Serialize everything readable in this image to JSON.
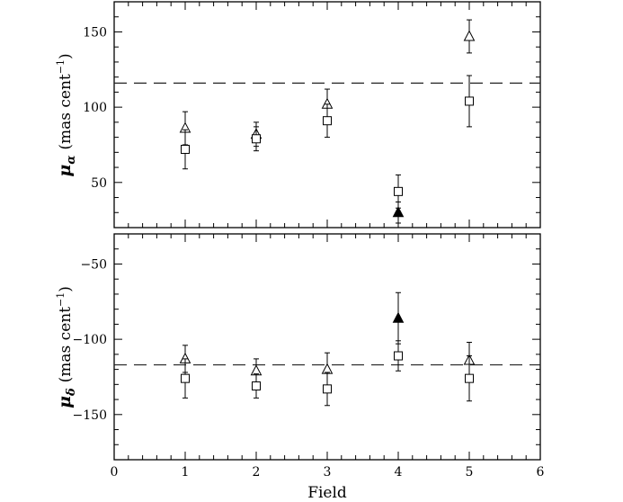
{
  "chart_data": [
    {
      "type": "scatter",
      "panel": "top",
      "ylabel": "μ_α (mas cent⁻¹)",
      "ylabel_symbol": "μ",
      "ylabel_subscript": "α",
      "ylabel_units": "(mas cent",
      "ylabel_exp": "−1",
      "ylabel_close": ")",
      "xlim": [
        0,
        6
      ],
      "ylim": [
        20,
        170
      ],
      "yticks": [
        50,
        100,
        150
      ],
      "ytick_labels": [
        "50",
        "100",
        "150"
      ],
      "reference_line": 116,
      "series": [
        {
          "marker": "open-triangle",
          "points": [
            {
              "x": 1,
              "y": 86,
              "err": 11
            },
            {
              "x": 2,
              "y": 82,
              "err": 8
            },
            {
              "x": 3,
              "y": 102,
              "err": 10
            },
            {
              "x": 5,
              "y": 147,
              "err": 11
            }
          ]
        },
        {
          "marker": "open-square",
          "points": [
            {
              "x": 1,
              "y": 72,
              "err": 13
            },
            {
              "x": 2,
              "y": 79,
              "err": 8
            },
            {
              "x": 3,
              "y": 91,
              "err": 11
            },
            {
              "x": 4,
              "y": 44,
              "err": 11
            },
            {
              "x": 5,
              "y": 104,
              "err": 17
            }
          ]
        },
        {
          "marker": "filled-triangle",
          "points": [
            {
              "x": 4,
              "y": 30,
              "err": 7
            }
          ]
        }
      ]
    },
    {
      "type": "scatter",
      "panel": "bottom",
      "xlabel": "Field",
      "ylabel": "μ_δ (mas cent⁻¹)",
      "ylabel_symbol": "μ",
      "ylabel_subscript": "δ",
      "ylabel_units": "(mas cent",
      "ylabel_exp": "−1",
      "ylabel_close": ")",
      "xlim": [
        0,
        6
      ],
      "ylim": [
        -180,
        -30
      ],
      "xticks": [
        0,
        1,
        2,
        3,
        4,
        5,
        6
      ],
      "xtick_labels": [
        "0",
        "1",
        "2",
        "3",
        "4",
        "5",
        "6"
      ],
      "yticks": [
        -150,
        -100,
        -50
      ],
      "ytick_labels": [
        "−150",
        "−100",
        "−50"
      ],
      "reference_line": -117,
      "series": [
        {
          "marker": "open-triangle",
          "points": [
            {
              "x": 1,
              "y": -113,
              "err": 9
            },
            {
              "x": 2,
              "y": -121,
              "err": 8
            },
            {
              "x": 3,
              "y": -120,
              "err": 11
            },
            {
              "x": 5,
              "y": -114,
              "err": 12
            }
          ]
        },
        {
          "marker": "open-square",
          "points": [
            {
              "x": 1,
              "y": -126,
              "err": 13
            },
            {
              "x": 2,
              "y": -131,
              "err": 8
            },
            {
              "x": 3,
              "y": -133,
              "err": 11
            },
            {
              "x": 4,
              "y": -111,
              "err": 10
            },
            {
              "x": 5,
              "y": -126,
              "err": 15
            }
          ]
        },
        {
          "marker": "filled-triangle",
          "points": [
            {
              "x": 4,
              "y": -86,
              "err": 17
            }
          ]
        }
      ]
    }
  ]
}
